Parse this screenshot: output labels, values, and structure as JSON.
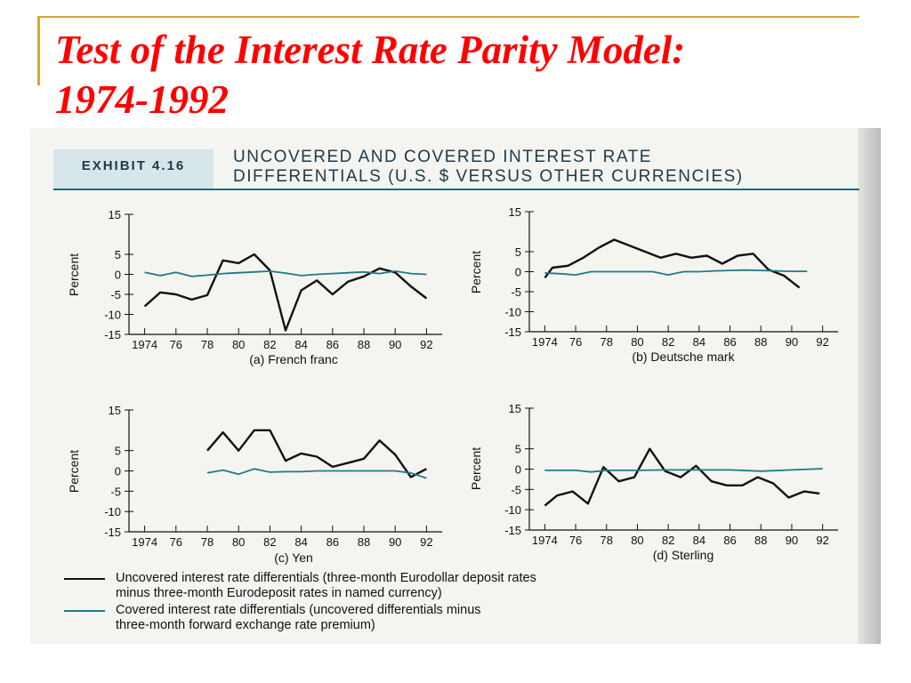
{
  "slide": {
    "title_line1": "Test of the Interest Rate Parity Model:",
    "title_line2": "1974-1992"
  },
  "exhibit": {
    "label": "EXHIBIT 4.16",
    "title_line1": "UNCOVERED AND COVERED INTEREST RATE",
    "title_line2": "DIFFERENTIALS (U.S. $ VERSUS OTHER CURRENCIES)"
  },
  "legend": {
    "uncovered_line1": "Uncovered interest rate differentials (three-month Eurodollar deposit rates",
    "uncovered_line2": "minus three-month Eurodeposit rates in named currency)",
    "covered_line1": "Covered interest rate differentials (uncovered differentials minus",
    "covered_line2": "three-month forward exchange rate premium)"
  },
  "colors": {
    "title": "#ff0000",
    "accent": "#d4a73a",
    "uncovered": "#111111",
    "covered": "#1e7a86",
    "exhibit_text": "#1e3a48"
  },
  "chart_data": [
    {
      "type": "line",
      "caption": "(a) French franc",
      "ylabel": "Percent",
      "ylim": [
        -15,
        15
      ],
      "yticks": [
        15,
        5,
        0,
        -5,
        -10,
        -15
      ],
      "xlim": [
        1973,
        1993
      ],
      "xticks": [
        1974,
        1976,
        1978,
        1980,
        1982,
        1984,
        1986,
        1988,
        1990,
        1992
      ],
      "xtick_labels": [
        "1974",
        "76",
        "78",
        "80",
        "82",
        "84",
        "86",
        "88",
        "90",
        "92"
      ],
      "series": [
        {
          "key": "uncovered",
          "x": [
            1974,
            1975,
            1976,
            1977,
            1978,
            1979,
            1980,
            1981,
            1982,
            1983,
            1984,
            1985,
            1986,
            1987,
            1988,
            1989,
            1990,
            1991,
            1992
          ],
          "y": [
            -8,
            -4.5,
            -5,
            -6.3,
            -5.2,
            3.5,
            2.8,
            5,
            1,
            -14,
            -4,
            -1.5,
            -5,
            -1.8,
            -0.5,
            1.5,
            0.5,
            -3,
            -6
          ]
        },
        {
          "key": "covered",
          "x": [
            1974,
            1975,
            1976,
            1977,
            1978,
            1979,
            1980,
            1981,
            1982,
            1983,
            1984,
            1985,
            1986,
            1987,
            1988,
            1989,
            1990,
            1991,
            1992
          ],
          "y": [
            0.5,
            -0.3,
            0.5,
            -0.5,
            -0.2,
            0.2,
            0.4,
            0.6,
            0.8,
            0.3,
            -0.3,
            0,
            0.2,
            0.4,
            0.6,
            0.2,
            0.8,
            0.2,
            0
          ]
        }
      ]
    },
    {
      "type": "line",
      "caption": "(b) Deutsche mark",
      "ylabel": "Percent",
      "ylim": [
        -15,
        15
      ],
      "yticks": [
        15,
        5,
        0,
        -5,
        -10,
        -15
      ],
      "xlim": [
        1973,
        1993
      ],
      "xticks": [
        1974,
        1976,
        1978,
        1980,
        1982,
        1984,
        1986,
        1988,
        1990,
        1992
      ],
      "xtick_labels": [
        "1974",
        "76",
        "78",
        "80",
        "82",
        "84",
        "86",
        "88",
        "90",
        "92"
      ],
      "series": [
        {
          "key": "uncovered",
          "x": [
            1974,
            1974.5,
            1975.5,
            1976.5,
            1977.5,
            1978.5,
            1979.5,
            1980.5,
            1981.5,
            1982.5,
            1983.5,
            1984.5,
            1985.5,
            1986.5,
            1987.5,
            1988.5,
            1989.5,
            1990.5
          ],
          "y": [
            -1.5,
            1,
            1.5,
            3.5,
            6,
            8,
            6.5,
            5,
            3.5,
            4.5,
            3.5,
            4,
            2,
            4,
            4.5,
            0.5,
            -1,
            -4
          ]
        },
        {
          "key": "covered",
          "x": [
            1974,
            1975,
            1976,
            1977,
            1978,
            1979,
            1980,
            1981,
            1982,
            1983,
            1984,
            1985,
            1986,
            1987,
            1988,
            1989,
            1990,
            1991
          ],
          "y": [
            -0.3,
            -0.5,
            -0.8,
            0,
            0,
            0,
            0,
            0,
            -0.8,
            0,
            0,
            0.2,
            0.3,
            0.4,
            0.3,
            0.2,
            0.1,
            0.1
          ]
        }
      ]
    },
    {
      "type": "line",
      "caption": "(c) Yen",
      "ylabel": "Percent",
      "ylim": [
        -15,
        15
      ],
      "yticks": [
        15,
        5,
        0,
        -5,
        -10,
        -15
      ],
      "xlim": [
        1973,
        1993
      ],
      "xticks": [
        1974,
        1976,
        1978,
        1980,
        1982,
        1984,
        1986,
        1988,
        1990,
        1992
      ],
      "xtick_labels": [
        "1974",
        "76",
        "78",
        "80",
        "82",
        "84",
        "86",
        "88",
        "90",
        "92"
      ],
      "series": [
        {
          "key": "uncovered",
          "x": [
            1978,
            1979,
            1980,
            1981,
            1982,
            1983,
            1984,
            1985,
            1986,
            1987,
            1988,
            1989,
            1990,
            1991,
            1992
          ],
          "y": [
            5,
            9.5,
            5,
            10,
            10,
            2.5,
            4.3,
            3.5,
            1,
            2,
            3,
            7.5,
            4,
            -1.5,
            0.5
          ]
        },
        {
          "key": "covered",
          "x": [
            1978,
            1979,
            1980,
            1981,
            1982,
            1983,
            1984,
            1985,
            1986,
            1987,
            1988,
            1989,
            1990,
            1991,
            1992
          ],
          "y": [
            -0.5,
            0.2,
            -0.8,
            0.5,
            -0.3,
            -0.2,
            -0.2,
            0,
            0,
            0,
            0,
            0,
            0,
            -0.5,
            -1.8
          ]
        }
      ]
    },
    {
      "type": "line",
      "caption": "(d) Sterling",
      "ylabel": "Percent",
      "ylim": [
        -15,
        15
      ],
      "yticks": [
        15,
        5,
        0,
        -5,
        -10,
        -15
      ],
      "xlim": [
        1973,
        1993
      ],
      "xticks": [
        1974,
        1976,
        1978,
        1980,
        1982,
        1984,
        1986,
        1988,
        1990,
        1992
      ],
      "xtick_labels": [
        "1974",
        "76",
        "78",
        "80",
        "82",
        "84",
        "86",
        "88",
        "90",
        "92"
      ],
      "series": [
        {
          "key": "uncovered",
          "x": [
            1974,
            1974.8,
            1975.8,
            1976.8,
            1977.8,
            1978.8,
            1979.8,
            1980.8,
            1981.8,
            1982.8,
            1983.8,
            1984.8,
            1985.8,
            1986.8,
            1987.8,
            1988.8,
            1989.8,
            1990.8,
            1991.8
          ],
          "y": [
            -9,
            -6.5,
            -5.5,
            -8.5,
            0.5,
            -3,
            -2,
            5,
            -0.5,
            -2,
            0.8,
            -3,
            -4,
            -4,
            -2,
            -3.5,
            -7,
            -5.5,
            -6
          ]
        },
        {
          "key": "covered",
          "x": [
            1974,
            1976,
            1977,
            1978,
            1980,
            1982,
            1984,
            1986,
            1988,
            1990,
            1992
          ],
          "y": [
            -0.3,
            -0.3,
            -0.7,
            -0.3,
            -0.3,
            -0.2,
            -0.2,
            -0.2,
            -0.5,
            -0.2,
            0.1
          ]
        }
      ]
    }
  ]
}
